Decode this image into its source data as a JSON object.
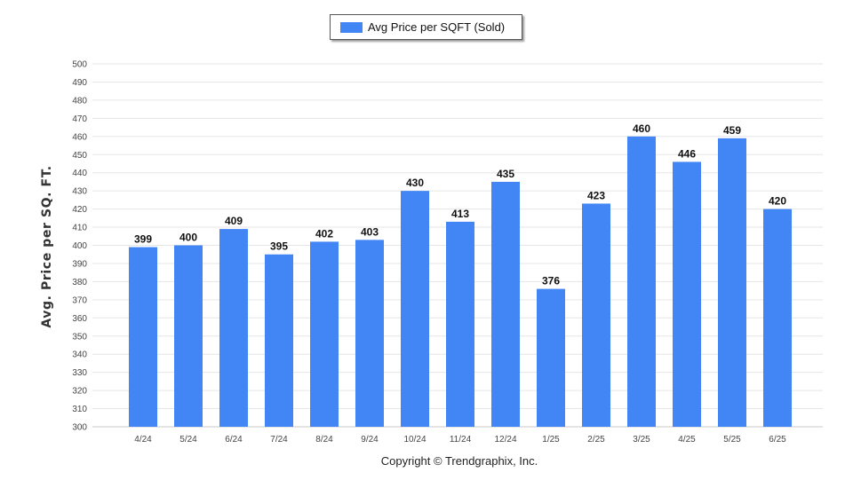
{
  "chart_data": {
    "type": "bar",
    "categories": [
      "4/24",
      "5/24",
      "6/24",
      "7/24",
      "8/24",
      "9/24",
      "10/24",
      "11/24",
      "12/24",
      "1/25",
      "2/25",
      "3/25",
      "4/25",
      "5/25",
      "6/25"
    ],
    "series": [
      {
        "name": "Avg Price per SQFT (Sold)",
        "values": [
          399,
          400,
          409,
          395,
          402,
          403,
          430,
          413,
          435,
          376,
          423,
          460,
          446,
          459,
          420
        ]
      }
    ],
    "ylabel": "Avg. Price per SQ. FT.",
    "xlabel": "",
    "ylim": [
      300,
      500
    ],
    "yticks": [
      300,
      310,
      320,
      330,
      340,
      350,
      360,
      370,
      380,
      390,
      400,
      410,
      420,
      430,
      440,
      450,
      460,
      470,
      480,
      490,
      500
    ],
    "grid": true,
    "legend_position": "top-center",
    "bar_color": "#4285f4"
  },
  "footer": "Copyright © Trendgraphix, Inc."
}
